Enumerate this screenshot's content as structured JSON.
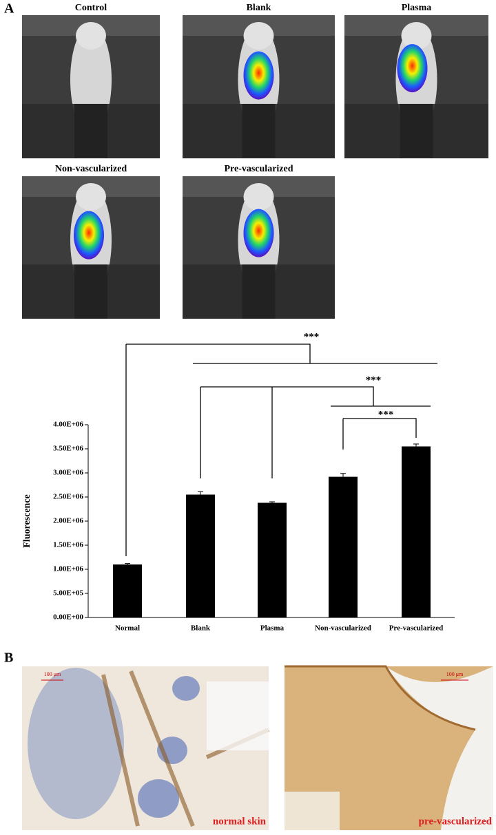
{
  "panel_labels": [
    "A",
    "B"
  ],
  "image_labels": [
    "Control",
    "Blank",
    "Plasma",
    "Non-vascularized",
    "Pre-vascularized"
  ],
  "significance": [
    "***",
    "***",
    "***"
  ],
  "histology": {
    "scale_bar": "100 μm",
    "labels": [
      "normal skin",
      "pre-vascularized"
    ]
  },
  "chart_data": {
    "type": "bar",
    "y_label": "Fluorescence",
    "categories": [
      "Normal",
      "Blank",
      "Plasma",
      "Non-vascularized",
      "Pre-vascularized"
    ],
    "values": [
      1100000,
      2550000,
      2380000,
      2920000,
      3550000
    ],
    "errors": [
      20000,
      60000,
      20000,
      70000,
      50000
    ],
    "color": "#000000",
    "ylim": [
      0,
      4000000
    ],
    "yticks": [
      {
        "value": 0,
        "label": "0.00E+00"
      },
      {
        "value": 500000,
        "label": "5.00E+05"
      },
      {
        "value": 1000000,
        "label": "1.00E+06"
      },
      {
        "value": 1500000,
        "label": "1.50E+06"
      },
      {
        "value": 2000000,
        "label": "2.00E+06"
      },
      {
        "value": 2500000,
        "label": "2.50E+06"
      },
      {
        "value": 3000000,
        "label": "3.00E+06"
      },
      {
        "value": 3500000,
        "label": "3.50E+06"
      },
      {
        "value": 4000000,
        "label": "4.00E+06"
      }
    ]
  }
}
